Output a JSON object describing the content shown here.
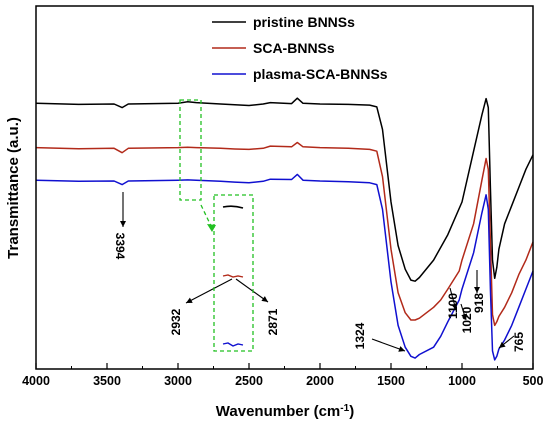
{
  "chart_data": {
    "type": "line",
    "xlabel": "Wavenumber (cm",
    "xlabel_sup": "-1",
    "xlabel_tail": ")",
    "ylabel": "Transmittance (a.u.)",
    "xlim": [
      4000,
      500
    ],
    "x_reversed": true,
    "ylim": [
      0,
      100
    ],
    "y_ticks_shown": false,
    "x_ticks": [
      4000,
      3500,
      3000,
      2500,
      2000,
      1500,
      1000,
      500
    ],
    "x_tick_labels": [
      "4000",
      "3500",
      "3000",
      "2500",
      "2000",
      "1500",
      "1000",
      "500"
    ],
    "legend_position": "top-right",
    "series": [
      {
        "name": "pristine BNNSs",
        "color": "#000000",
        "points": [
          [
            4000,
            73.2
          ],
          [
            3700,
            72.9
          ],
          [
            3450,
            73.0
          ],
          [
            3394,
            72.0
          ],
          [
            3350,
            73.0
          ],
          [
            3000,
            73.2
          ],
          [
            2932,
            73.6
          ],
          [
            2871,
            73.4
          ],
          [
            2700,
            73.0
          ],
          [
            2600,
            72.8
          ],
          [
            2500,
            72.6
          ],
          [
            2400,
            73.0
          ],
          [
            2350,
            73.4
          ],
          [
            2200,
            73.1
          ],
          [
            2160,
            74.6
          ],
          [
            2120,
            73.2
          ],
          [
            2000,
            73.0
          ],
          [
            1800,
            72.9
          ],
          [
            1650,
            72.7
          ],
          [
            1600,
            72.2
          ],
          [
            1560,
            66.0
          ],
          [
            1500,
            46.0
          ],
          [
            1450,
            34.0
          ],
          [
            1400,
            27.5
          ],
          [
            1360,
            24.5
          ],
          [
            1330,
            24.2
          ],
          [
            1300,
            25.2
          ],
          [
            1200,
            30.0
          ],
          [
            1100,
            37.0
          ],
          [
            1000,
            46.0
          ],
          [
            918,
            60.0
          ],
          [
            860,
            70.0
          ],
          [
            830,
            74.5
          ],
          [
            815,
            72.0
          ],
          [
            800,
            50.0
          ],
          [
            785,
            30.0
          ],
          [
            770,
            25.0
          ],
          [
            755,
            28.0
          ],
          [
            740,
            33.0
          ],
          [
            700,
            40.0
          ],
          [
            650,
            45.0
          ],
          [
            600,
            50.0
          ],
          [
            550,
            55.0
          ],
          [
            500,
            59.0
          ]
        ]
      },
      {
        "name": "SCA-BNNSs",
        "color": "#b22a1a",
        "points": [
          [
            4000,
            61.0
          ],
          [
            3700,
            60.7
          ],
          [
            3450,
            60.8
          ],
          [
            3394,
            59.6
          ],
          [
            3350,
            60.8
          ],
          [
            3000,
            61.0
          ],
          [
            2932,
            61.1
          ],
          [
            2871,
            61.0
          ],
          [
            2700,
            60.8
          ],
          [
            2600,
            60.6
          ],
          [
            2500,
            60.5
          ],
          [
            2400,
            60.8
          ],
          [
            2350,
            61.4
          ],
          [
            2200,
            61.2
          ],
          [
            2160,
            62.4
          ],
          [
            2120,
            61.2
          ],
          [
            2000,
            61.0
          ],
          [
            1800,
            60.8
          ],
          [
            1650,
            60.5
          ],
          [
            1600,
            60.0
          ],
          [
            1560,
            53.0
          ],
          [
            1500,
            33.0
          ],
          [
            1450,
            21.0
          ],
          [
            1400,
            15.5
          ],
          [
            1360,
            13.5
          ],
          [
            1330,
            13.5
          ],
          [
            1300,
            14.0
          ],
          [
            1200,
            17.0
          ],
          [
            1150,
            19.0
          ],
          [
            1100,
            22.0
          ],
          [
            1020,
            27.0
          ],
          [
            1000,
            30.0
          ],
          [
            918,
            40.0
          ],
          [
            860,
            52.0
          ],
          [
            830,
            58.0
          ],
          [
            815,
            55.0
          ],
          [
            800,
            35.0
          ],
          [
            785,
            15.0
          ],
          [
            770,
            12.0
          ],
          [
            755,
            13.0
          ],
          [
            740,
            14.5
          ],
          [
            700,
            17.0
          ],
          [
            650,
            21.0
          ],
          [
            600,
            26.0
          ],
          [
            550,
            30.0
          ],
          [
            500,
            35.0
          ]
        ]
      },
      {
        "name": "plasma-SCA-BNNSs",
        "color": "#1010d0",
        "points": [
          [
            4000,
            52.0
          ],
          [
            3700,
            51.7
          ],
          [
            3450,
            51.8
          ],
          [
            3394,
            50.8
          ],
          [
            3350,
            51.8
          ],
          [
            3000,
            52.0
          ],
          [
            2932,
            52.1
          ],
          [
            2871,
            52.0
          ],
          [
            2700,
            51.7
          ],
          [
            2600,
            51.5
          ],
          [
            2500,
            51.3
          ],
          [
            2400,
            51.7
          ],
          [
            2350,
            52.3
          ],
          [
            2200,
            52.2
          ],
          [
            2160,
            53.6
          ],
          [
            2120,
            52.0
          ],
          [
            2000,
            51.8
          ],
          [
            1800,
            51.6
          ],
          [
            1650,
            51.3
          ],
          [
            1600,
            50.8
          ],
          [
            1560,
            44.0
          ],
          [
            1500,
            24.0
          ],
          [
            1450,
            12.0
          ],
          [
            1400,
            6.0
          ],
          [
            1360,
            3.5
          ],
          [
            1330,
            3.0
          ],
          [
            1300,
            4.0
          ],
          [
            1200,
            6.0
          ],
          [
            1150,
            9.0
          ],
          [
            1100,
            13.0
          ],
          [
            1020,
            19.0
          ],
          [
            1000,
            22.0
          ],
          [
            918,
            32.0
          ],
          [
            860,
            43.0
          ],
          [
            830,
            48.0
          ],
          [
            815,
            44.0
          ],
          [
            800,
            22.0
          ],
          [
            785,
            5.0
          ],
          [
            770,
            2.5
          ],
          [
            755,
            3.5
          ],
          [
            740,
            5.5
          ],
          [
            700,
            8.0
          ],
          [
            650,
            12.0
          ],
          [
            600,
            17.0
          ],
          [
            550,
            22.0
          ],
          [
            500,
            27.0
          ]
        ]
      }
    ],
    "annotations": [
      {
        "text": "3394",
        "x": 3394,
        "y": 38,
        "rotate": 90
      },
      {
        "text": "2932",
        "x": 2960,
        "y": 16,
        "rotate": -90
      },
      {
        "text": "2871",
        "x": 2760,
        "y": 16,
        "rotate": -90
      },
      {
        "text": "1324",
        "x": 1430,
        "y": 6,
        "rotate": -90
      },
      {
        "text": "1100",
        "x": 1110,
        "y": 21,
        "rotate": -90
      },
      {
        "text": "1020",
        "x": 1010,
        "y": 17,
        "rotate": -90
      },
      {
        "text": "918",
        "x": 918,
        "y": 24,
        "rotate": -90
      },
      {
        "text": "765",
        "x": 695,
        "y": 3.5,
        "rotate": -90
      }
    ],
    "inset_marks": {
      "pristine": 0.78,
      "sca": 0.5,
      "plasma": 0.2
    }
  }
}
